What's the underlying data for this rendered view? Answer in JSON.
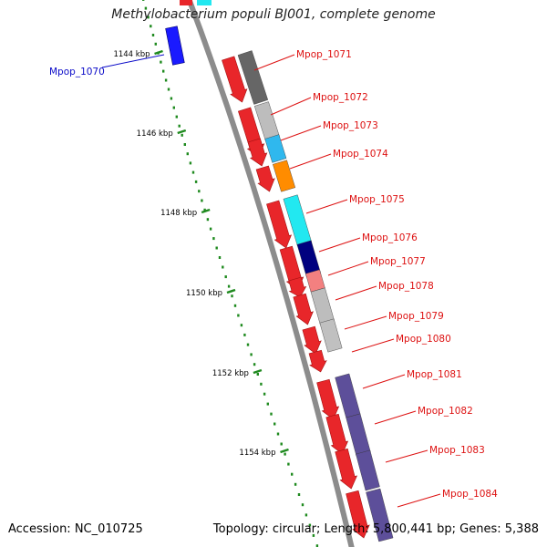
{
  "title": "Methylobacterium populi BJ001, complete genome",
  "footer": {
    "accession": "Accession: NC_010725",
    "topology": "Topology: circular; Length: 5,800,441 bp; Genes: 5,388"
  },
  "colors": {
    "forward_gene": "#e8262a",
    "reverse_gene_label": "#0a0ac8",
    "forward_gene_label": "#dd1111",
    "backbone": "#8c8c8c",
    "ruler_ticks": "#1f8a1f"
  },
  "ruler": [
    {
      "label": "1144 kbp"
    },
    {
      "label": "1146 kbp"
    },
    {
      "label": "1148 kbp"
    },
    {
      "label": "1150 kbp"
    },
    {
      "label": "1152 kbp"
    },
    {
      "label": "1154 kbp"
    }
  ],
  "genes": [
    {
      "name": "Mpop_1070",
      "strand": "reverse"
    },
    {
      "name": "Mpop_1071",
      "strand": "forward"
    },
    {
      "name": "Mpop_1072",
      "strand": "forward"
    },
    {
      "name": "Mpop_1073",
      "strand": "forward"
    },
    {
      "name": "Mpop_1074",
      "strand": "forward"
    },
    {
      "name": "Mpop_1075",
      "strand": "forward"
    },
    {
      "name": "Mpop_1076",
      "strand": "forward"
    },
    {
      "name": "Mpop_1077",
      "strand": "forward"
    },
    {
      "name": "Mpop_1078",
      "strand": "forward"
    },
    {
      "name": "Mpop_1079",
      "strand": "forward"
    },
    {
      "name": "Mpop_1080",
      "strand": "forward"
    },
    {
      "name": "Mpop_1081",
      "strand": "forward"
    },
    {
      "name": "Mpop_1082",
      "strand": "forward"
    },
    {
      "name": "Mpop_1083",
      "strand": "forward"
    },
    {
      "name": "Mpop_1084",
      "strand": "forward"
    }
  ],
  "category_colors": [
    "#666666",
    "#bdbdbd",
    "#2fb8ee",
    "#ff8c00",
    "#22e8f0",
    "#00007f",
    "#f38080",
    "#bdbdbd",
    "#c0c0c0",
    "#5d4f9a",
    "#5d4f9a",
    "#5d4f9a",
    "#5d4f9a"
  ]
}
